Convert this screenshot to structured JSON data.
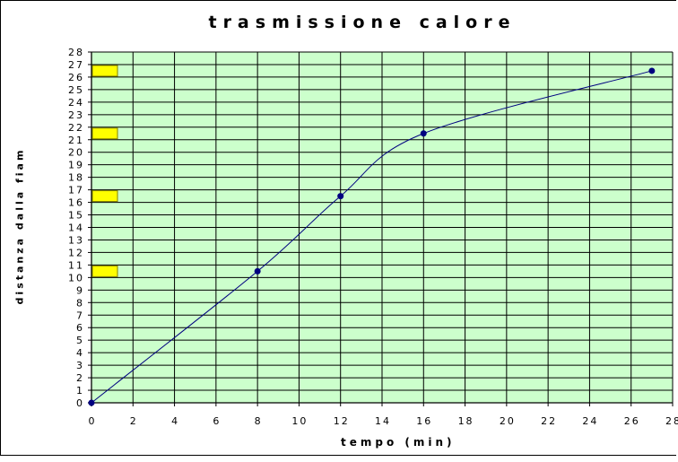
{
  "chart_data": {
    "type": "line",
    "title": "trasmissione calore",
    "xlabel": "tempo (min)",
    "ylabel": "distanza dalla fiam",
    "xlim": [
      0,
      28
    ],
    "ylim": [
      0,
      28
    ],
    "x_ticks": [
      "0",
      "2",
      "4",
      "6",
      "8",
      "10",
      "12",
      "14",
      "16",
      "18",
      "20",
      "22",
      "24",
      "26",
      "28"
    ],
    "y_ticks": [
      "0",
      "1",
      "2",
      "3",
      "4",
      "5",
      "6",
      "7",
      "8",
      "9",
      "10",
      "11",
      "12",
      "13",
      "14",
      "15",
      "16",
      "17",
      "18",
      "19",
      "20",
      "21",
      "22",
      "23",
      "24",
      "25",
      "26",
      "27",
      "28"
    ],
    "grid": true,
    "series": [
      {
        "x": [
          0,
          8,
          12,
          16,
          27
        ],
        "y": [
          0,
          10.5,
          16.5,
          21.5,
          26.5
        ]
      }
    ],
    "colors": {
      "plot_background": "#ccffcc",
      "line": "#000080",
      "marker": "#000080",
      "grid": "#000000",
      "legend_key": "#ffff00"
    },
    "legend": {
      "placement": "left",
      "entries": [
        {
          "y": 26.5
        },
        {
          "y": 21.5
        },
        {
          "y": 16.5
        },
        {
          "y": 10.5
        }
      ]
    }
  }
}
